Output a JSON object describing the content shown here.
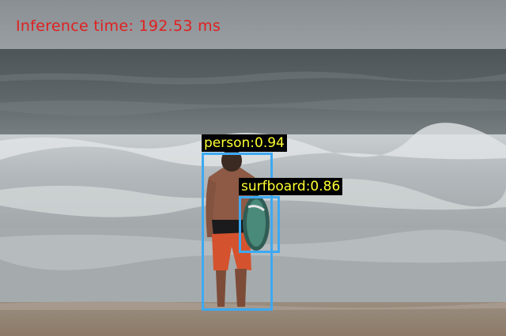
{
  "overlay": {
    "inference_time": "Inference time: 192.53 ms",
    "text_color": "#e02020"
  },
  "detections": [
    {
      "label": "person:0.94",
      "class": "person",
      "score": 0.94,
      "box_color": "#3da9f2",
      "label_color": "#ffff33"
    },
    {
      "label": "surfboard:0.86",
      "class": "surfboard",
      "score": 0.86,
      "box_color": "#3da9f2",
      "label_color": "#ffff33"
    }
  ]
}
